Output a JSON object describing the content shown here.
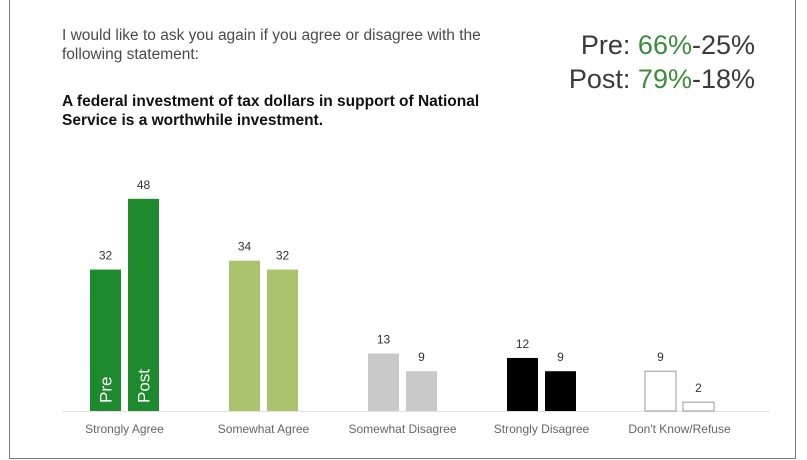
{
  "header": {
    "intro": "I would like to ask you again if you agree or disagree with the following statement:",
    "statement": "A federal investment of tax dollars in support of National Service is a worthwhile investment.",
    "summary": [
      {
        "label": "Pre:",
        "agree": "66%",
        "disagree": "-25%"
      },
      {
        "label": "Post:",
        "agree": "79%",
        "disagree": "-18%"
      }
    ]
  },
  "colors": {
    "strong_agree": "#1e8a2e",
    "somewhat_agree": "#a9c46c",
    "somewhat_disagree": "#c9c9c9",
    "strong_disagree": "#000000",
    "dont_know_fill": "#ffffff",
    "dont_know_stroke": "#999999",
    "summary_accent": "#3a8d3a"
  },
  "chart_data": {
    "type": "bar",
    "categories": [
      "Strongly Agree",
      "Somewhat Agree",
      "Somewhat Disagree",
      "Strongly Disagree",
      "Don't Know/Refuse"
    ],
    "series": [
      {
        "name": "Pre",
        "values": [
          32,
          34,
          13,
          12,
          9
        ]
      },
      {
        "name": "Post",
        "values": [
          48,
          32,
          9,
          9,
          2
        ]
      }
    ],
    "bar_labels": [
      "Pre",
      "Post"
    ],
    "ylim": [
      0,
      48
    ],
    "grid": false,
    "legend": "none"
  }
}
